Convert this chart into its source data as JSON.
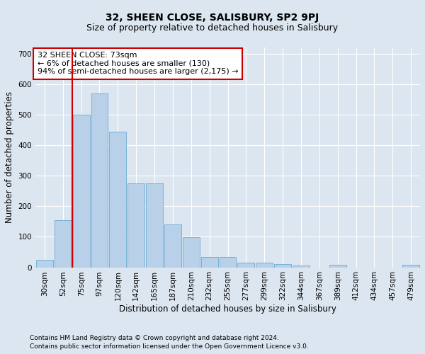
{
  "title": "32, SHEEN CLOSE, SALISBURY, SP2 9PJ",
  "subtitle": "Size of property relative to detached houses in Salisbury",
  "xlabel": "Distribution of detached houses by size in Salisbury",
  "ylabel": "Number of detached properties",
  "footnote1": "Contains HM Land Registry data © Crown copyright and database right 2024.",
  "footnote2": "Contains public sector information licensed under the Open Government Licence v3.0.",
  "annotation_title": "32 SHEEN CLOSE: 73sqm",
  "annotation_line2": "← 6% of detached houses are smaller (130)",
  "annotation_line3": "94% of semi-detached houses are larger (2,175) →",
  "bar_labels": [
    "30sqm",
    "52sqm",
    "75sqm",
    "97sqm",
    "120sqm",
    "142sqm",
    "165sqm",
    "187sqm",
    "210sqm",
    "232sqm",
    "255sqm",
    "277sqm",
    "299sqm",
    "322sqm",
    "344sqm",
    "367sqm",
    "389sqm",
    "412sqm",
    "434sqm",
    "457sqm",
    "479sqm"
  ],
  "bar_values": [
    25,
    155,
    500,
    570,
    445,
    275,
    275,
    140,
    98,
    33,
    33,
    15,
    15,
    10,
    5,
    0,
    8,
    0,
    0,
    0,
    8
  ],
  "bar_color": "#b8d0e8",
  "bar_edge_color": "#6aaad4",
  "vline_color": "#cc0000",
  "annotation_box_color": "#ffffff",
  "annotation_box_edge": "#cc0000",
  "background_color": "#dce6f0",
  "plot_background": "#dce6f0",
  "ylim": [
    0,
    720
  ],
  "yticks": [
    0,
    100,
    200,
    300,
    400,
    500,
    600,
    700
  ],
  "title_fontsize": 10,
  "subtitle_fontsize": 9,
  "axis_label_fontsize": 8.5,
  "tick_fontsize": 7.5,
  "annotation_fontsize": 8,
  "footnote_fontsize": 6.5
}
